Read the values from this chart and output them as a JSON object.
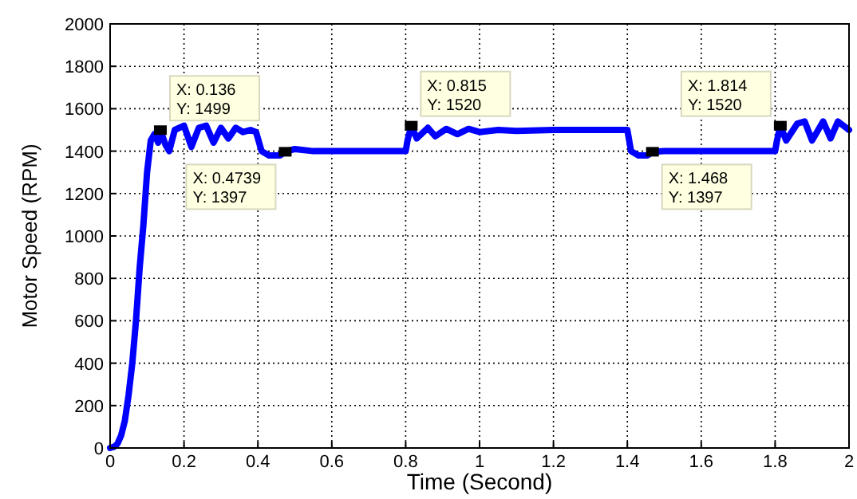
{
  "chart_data": {
    "type": "line",
    "xlabel": "Time (Second)",
    "ylabel": "Motor Speed (RPM)",
    "xlim": [
      0,
      2
    ],
    "ylim": [
      0,
      2000
    ],
    "xticks": [
      0,
      0.2,
      0.4,
      0.6,
      0.8,
      1,
      1.2,
      1.4,
      1.6,
      1.8,
      2
    ],
    "yticks": [
      0,
      200,
      400,
      600,
      800,
      1000,
      1200,
      1400,
      1600,
      1800,
      2000
    ],
    "grid": true,
    "line_style": "solid",
    "series": [
      {
        "color": "#0000ff",
        "x": [
          0,
          0.01,
          0.02,
          0.03,
          0.04,
          0.05,
          0.06,
          0.07,
          0.08,
          0.09,
          0.1,
          0.11,
          0.12,
          0.13,
          0.136,
          0.15,
          0.16,
          0.175,
          0.2,
          0.22,
          0.24,
          0.26,
          0.28,
          0.3,
          0.32,
          0.34,
          0.36,
          0.38,
          0.395,
          0.41,
          0.43,
          0.46,
          0.4739,
          0.5,
          0.55,
          0.6,
          0.7,
          0.8,
          0.805,
          0.815,
          0.83,
          0.86,
          0.88,
          0.91,
          0.94,
          0.97,
          1.0,
          1.05,
          1.1,
          1.2,
          1.3,
          1.4,
          1.41,
          1.43,
          1.455,
          1.468,
          1.5,
          1.6,
          1.7,
          1.8,
          1.805,
          1.814,
          1.83,
          1.86,
          1.88,
          1.9,
          1.93,
          1.95,
          1.97,
          2
        ],
        "values": [
          0,
          5,
          20,
          60,
          130,
          250,
          400,
          600,
          850,
          1050,
          1300,
          1450,
          1480,
          1440,
          1499,
          1430,
          1400,
          1500,
          1520,
          1420,
          1510,
          1520,
          1440,
          1510,
          1460,
          1510,
          1490,
          1500,
          1490,
          1400,
          1380,
          1380,
          1397,
          1410,
          1400,
          1400,
          1400,
          1400,
          1450,
          1520,
          1460,
          1510,
          1470,
          1505,
          1480,
          1505,
          1490,
          1500,
          1495,
          1500,
          1500,
          1500,
          1400,
          1380,
          1380,
          1397,
          1400,
          1400,
          1400,
          1400,
          1450,
          1520,
          1450,
          1530,
          1540,
          1450,
          1540,
          1460,
          1540,
          1500
        ]
      }
    ],
    "annotations": [
      {
        "text": "X: 0.136\nY: 1499",
        "x": 0.136,
        "y": 1499
      },
      {
        "text": "X: 0.4739\nY: 1397",
        "x": 0.4739,
        "y": 1397
      },
      {
        "text": "X: 0.815\nY: 1520",
        "x": 0.815,
        "y": 1520
      },
      {
        "text": "X: 1.468\nY: 1397",
        "x": 1.468,
        "y": 1397
      },
      {
        "text": "X: 1.814\nY: 1520",
        "x": 1.814,
        "y": 1520
      }
    ]
  }
}
